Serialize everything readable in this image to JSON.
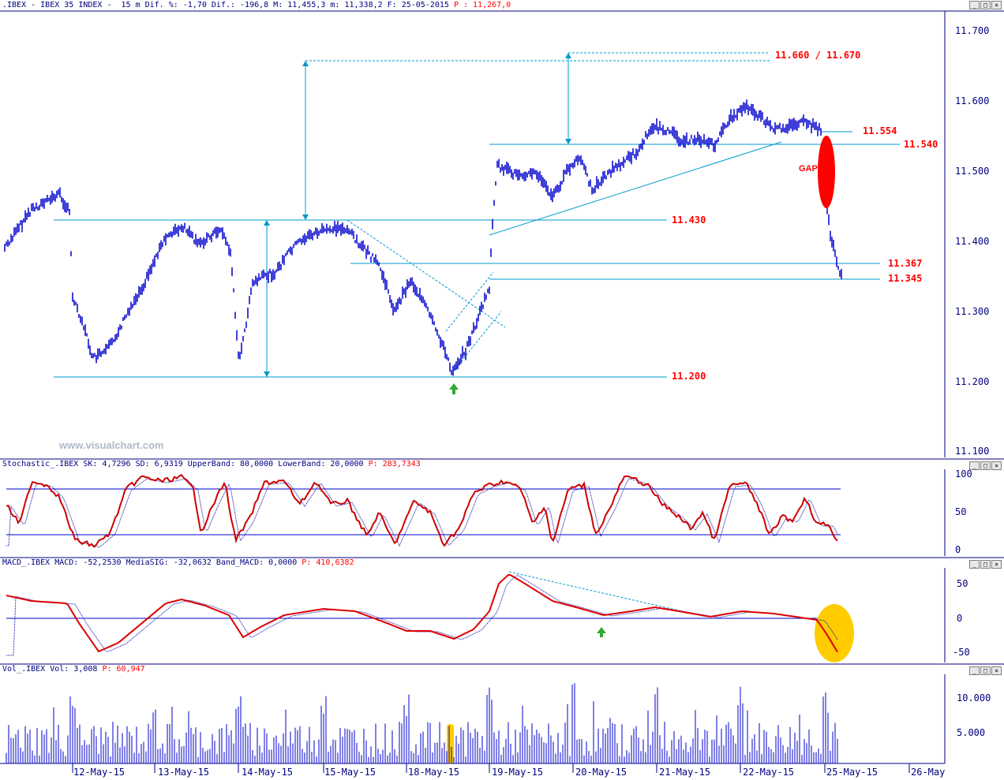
{
  "colors": {
    "price": "#0000cc",
    "line": "#0099cc",
    "level_text": "#ff0000",
    "stoch": "#cc0000",
    "macd": "#dd0000",
    "volume": "#0000cc",
    "highlight": "#ffcc00",
    "gap": "#ff0000",
    "arrow": "#33aa33"
  },
  "header": {
    "title": ".IBEX - IBEX 35 INDEX -  15 m Dif. %: -1,70 Dif.: -196,8 M: 11,455,3 m: 11,338,2 F: 25-05-2015",
    "price": " P : 11,267,0"
  },
  "price_panel": {
    "y_ticks": [
      "11.700",
      "11.600",
      "11.500",
      "11.400",
      "11.300",
      "11.200",
      "11.100"
    ],
    "levels": [
      {
        "label": "11.660 / 11.670"
      },
      {
        "label": "11.554"
      },
      {
        "label": "11.540"
      },
      {
        "label": "11.430"
      },
      {
        "label": "11.367"
      },
      {
        "label": "11.345"
      },
      {
        "label": "11.200"
      }
    ],
    "gap_label": "GAP",
    "watermark": "www.visualchart.com"
  },
  "stoch_panel": {
    "header": "Stochastic_.IBEX SK: 4,7296 SD: 6,9319 UpperBand: 80,0000 LowerBand: 20,0000",
    "header_p": " P: 283,7343",
    "y_ticks": [
      "100",
      "50",
      "0"
    ]
  },
  "macd_panel": {
    "header": "MACD_.IBEX MACD: -52,2530 MediaSIG: -32,0632 Band_MACD: 0,0000",
    "header_p": " P: 410,6382",
    "y_ticks": [
      "50",
      "0",
      "-50"
    ]
  },
  "vol_panel": {
    "header": "Vol_.IBEX Vol: 3,008",
    "header_p": " P: 60,947",
    "y_ticks": [
      "10.000",
      "5.000"
    ]
  },
  "dates": [
    "12-May-15",
    "13-May-15",
    "14-May-15",
    "15-May-15",
    "18-May-15",
    "19-May-15",
    "20-May-15",
    "21-May-15",
    "22-May-15",
    "25-May-15",
    "26-May"
  ],
  "window_buttons": [
    "_",
    "□",
    "×"
  ]
}
